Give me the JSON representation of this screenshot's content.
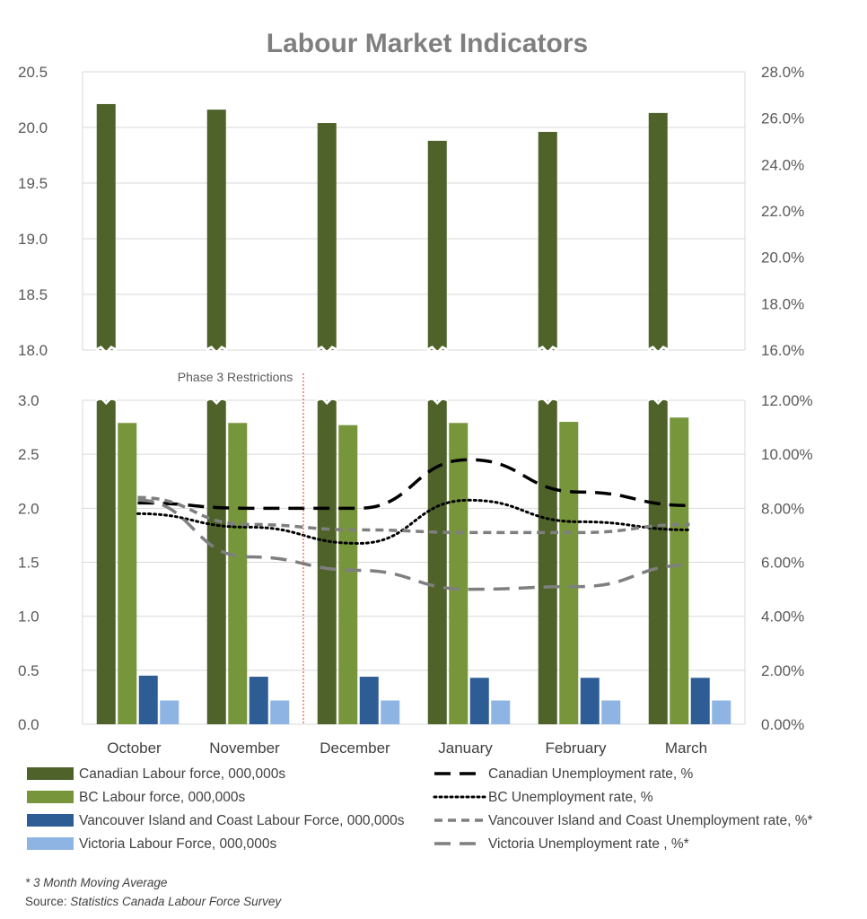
{
  "chart_data": {
    "type": "bar",
    "title": "Labour Market Indicators",
    "categories": [
      "October",
      "November",
      "December",
      "January",
      "February",
      "March"
    ],
    "bar_series": [
      {
        "name": "Canadian Labour force, 000,000s",
        "color": "#4e6229",
        "values": [
          20.21,
          20.16,
          20.04,
          19.88,
          19.96,
          20.13
        ]
      },
      {
        "name": "BC Labour force, 000,000s",
        "color": "#77963c",
        "values": [
          2.79,
          2.79,
          2.77,
          2.79,
          2.8,
          2.84
        ]
      },
      {
        "name": "Vancouver Island and Coast Labour Force, 000,000s",
        "color": "#2e5d95",
        "values": [
          0.45,
          0.44,
          0.44,
          0.43,
          0.43,
          0.43
        ]
      },
      {
        "name": "Victoria Labour Force, 000,000s",
        "color": "#8eb4e3",
        "values": [
          0.22,
          0.22,
          0.22,
          0.22,
          0.22,
          0.22
        ]
      }
    ],
    "line_series": [
      {
        "name": "Canadian Unemployment rate, %",
        "style": "long-dash",
        "color": "#000000",
        "values": [
          8.2,
          8.0,
          8.0,
          9.8,
          8.6,
          8.1
        ]
      },
      {
        "name": "BC Unemployment rate, %",
        "style": "dotted",
        "color": "#000000",
        "values": [
          7.8,
          7.3,
          6.7,
          8.3,
          7.5,
          7.2
        ]
      },
      {
        "name": "Vancouver Island and Coast Unemployment rate, %*",
        "style": "dash",
        "color": "#7f7f7f",
        "values": [
          8.4,
          7.4,
          7.2,
          7.1,
          7.1,
          7.4
        ]
      },
      {
        "name": "Victoria Unemployment rate , %*",
        "style": "long-dash",
        "color": "#7f7f7f",
        "values": [
          8.3,
          6.2,
          5.7,
          5.0,
          5.1,
          5.9
        ]
      }
    ],
    "upper_panel": {
      "ylim": [
        18.0,
        20.5
      ],
      "y_ticks": [
        "20.5",
        "20.0",
        "19.5",
        "19.0",
        "18.5",
        "18.0"
      ],
      "y2_ticks": [
        "28.0%",
        "26.0%",
        "24.0%",
        "22.0%",
        "20.0%",
        "18.0%",
        "16.0%"
      ]
    },
    "lower_panel": {
      "ylim": [
        0.0,
        3.0
      ],
      "y_ticks": [
        "3.0",
        "2.5",
        "2.0",
        "1.5",
        "1.0",
        "0.5",
        "0.0"
      ],
      "y2lim": [
        0,
        12
      ],
      "y2_ticks": [
        "12.00%",
        "10.00%",
        "8.00%",
        "6.00%",
        "4.00%",
        "2.00%",
        "0.00%"
      ]
    },
    "annotation": "Phase 3 Restrictions",
    "grid": true,
    "legend_position": "bottom"
  },
  "footnote": "* 3 Month Moving Average",
  "source_label": "Source: ",
  "source_text": "Statistics Canada Labour Force Survey"
}
